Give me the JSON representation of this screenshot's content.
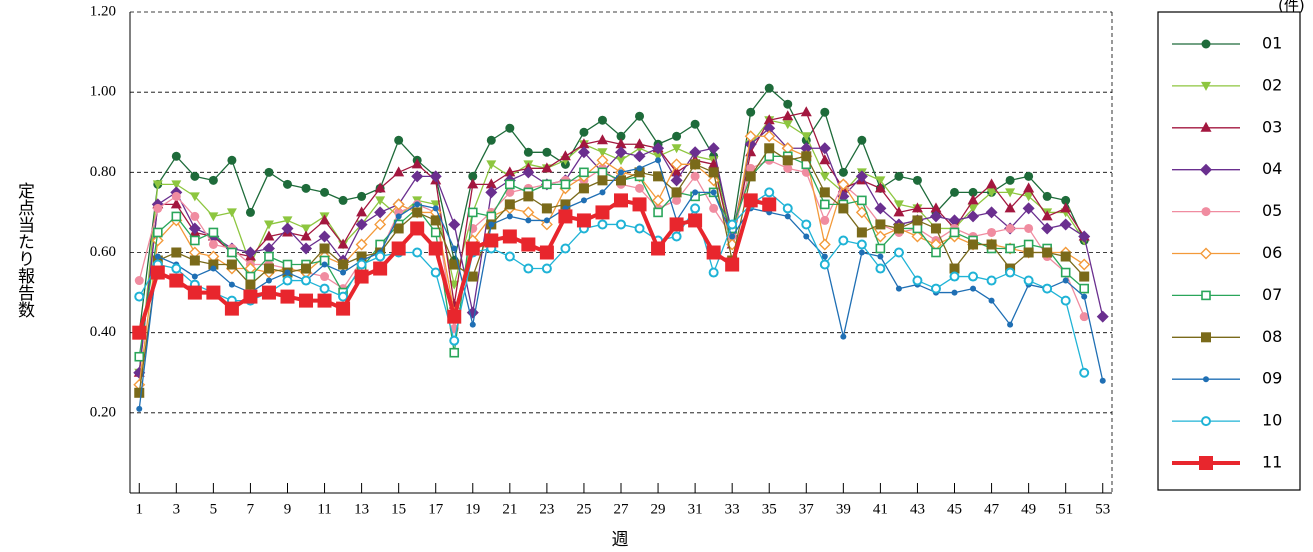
{
  "chart_data": {
    "type": "line",
    "unit_label": "(件)",
    "xlabel": "週",
    "ylabel": "定点当たり報告数",
    "x": [
      1,
      2,
      3,
      4,
      5,
      6,
      7,
      8,
      9,
      10,
      11,
      12,
      13,
      14,
      15,
      16,
      17,
      18,
      19,
      20,
      21,
      22,
      23,
      24,
      25,
      26,
      27,
      28,
      29,
      30,
      31,
      32,
      33,
      34,
      35,
      36,
      37,
      38,
      39,
      40,
      41,
      42,
      43,
      44,
      45,
      46,
      47,
      48,
      49,
      50,
      51,
      52,
      53
    ],
    "xlim": [
      0.5,
      53.5
    ],
    "xticks": [
      1,
      3,
      5,
      7,
      9,
      11,
      13,
      15,
      17,
      19,
      21,
      23,
      25,
      27,
      29,
      31,
      33,
      35,
      37,
      39,
      41,
      43,
      45,
      47,
      49,
      51,
      53
    ],
    "ylim": [
      0,
      1.2
    ],
    "yticks": [
      {
        "value": 0.2,
        "label": "0.20"
      },
      {
        "value": 0.4,
        "label": "0.40"
      },
      {
        "value": 0.6,
        "label": "0.60"
      },
      {
        "value": 0.8,
        "label": "0.80"
      },
      {
        "value": 1.0,
        "label": "1.00"
      },
      {
        "value": 1.2,
        "label": "1.20"
      }
    ],
    "grid": true,
    "legend": "right",
    "series": [
      {
        "name": "01",
        "color": "#1e6b3a",
        "marker": "circle",
        "values": [
          0.4,
          0.77,
          0.84,
          0.79,
          0.78,
          0.83,
          0.7,
          0.8,
          0.77,
          0.76,
          0.75,
          0.73,
          0.74,
          0.76,
          0.88,
          0.83,
          0.79,
          0.58,
          0.79,
          0.88,
          0.91,
          0.85,
          0.85,
          0.82,
          0.9,
          0.93,
          0.89,
          0.94,
          0.87,
          0.89,
          0.92,
          0.84,
          0.65,
          0.95,
          1.01,
          0.97,
          0.88,
          0.95,
          0.8,
          0.88,
          0.76,
          0.79,
          0.78,
          0.7,
          0.75,
          0.75,
          0.75,
          0.78,
          0.79,
          0.74,
          0.73,
          0.63,
          null
        ]
      },
      {
        "name": "02",
        "color": "#8dc63f",
        "marker": "triangle-down",
        "values": [
          0.3,
          0.77,
          0.77,
          0.74,
          0.69,
          0.7,
          0.57,
          0.67,
          0.68,
          0.66,
          0.69,
          0.62,
          0.67,
          0.73,
          0.69,
          0.73,
          0.72,
          0.52,
          0.7,
          0.82,
          0.79,
          0.82,
          0.81,
          0.83,
          0.87,
          0.85,
          0.83,
          0.86,
          0.84,
          0.86,
          0.84,
          0.83,
          0.63,
          0.87,
          0.93,
          0.92,
          0.89,
          0.79,
          0.75,
          0.8,
          0.78,
          0.72,
          0.71,
          0.66,
          0.66,
          0.71,
          0.75,
          0.75,
          0.74,
          0.7,
          0.7,
          0.63,
          null
        ]
      },
      {
        "name": "03",
        "color": "#a3173f",
        "marker": "triangle-up",
        "values": [
          0.3,
          0.72,
          0.72,
          0.65,
          0.64,
          0.6,
          0.59,
          0.64,
          0.65,
          0.64,
          0.68,
          0.62,
          0.7,
          0.76,
          0.8,
          0.82,
          0.78,
          0.47,
          0.77,
          0.77,
          0.8,
          0.81,
          0.81,
          0.84,
          0.87,
          0.88,
          0.87,
          0.87,
          0.86,
          0.8,
          0.83,
          0.82,
          0.62,
          0.85,
          0.93,
          0.94,
          0.95,
          0.83,
          0.76,
          0.78,
          0.76,
          0.7,
          0.71,
          0.71,
          0.66,
          0.73,
          0.77,
          0.71,
          0.76,
          0.69,
          0.71,
          0.64,
          null
        ]
      },
      {
        "name": "04",
        "color": "#6a2f8f",
        "marker": "diamond",
        "values": [
          0.3,
          0.72,
          0.75,
          0.66,
          0.64,
          0.61,
          0.6,
          0.61,
          0.66,
          0.61,
          0.64,
          0.58,
          0.67,
          0.7,
          0.72,
          0.79,
          0.79,
          0.67,
          0.45,
          0.75,
          0.78,
          0.8,
          0.77,
          0.78,
          0.85,
          0.8,
          0.85,
          0.84,
          0.86,
          0.78,
          0.85,
          0.86,
          0.64,
          0.87,
          0.91,
          0.86,
          0.86,
          0.86,
          0.74,
          0.79,
          0.71,
          0.67,
          0.68,
          0.69,
          0.68,
          0.69,
          0.7,
          0.66,
          0.71,
          0.66,
          0.67,
          0.64,
          0.44
        ]
      },
      {
        "name": "05",
        "color": "#f08ca0",
        "marker": "circle",
        "values": [
          0.53,
          0.71,
          0.74,
          0.69,
          0.62,
          0.61,
          0.57,
          0.57,
          0.56,
          0.55,
          0.54,
          0.51,
          0.58,
          0.6,
          0.7,
          0.72,
          0.7,
          0.41,
          0.66,
          0.7,
          0.75,
          0.76,
          0.77,
          0.78,
          0.78,
          0.81,
          0.77,
          0.76,
          0.71,
          0.73,
          0.79,
          0.71,
          0.64,
          0.81,
          0.83,
          0.81,
          0.8,
          0.68,
          0.77,
          0.73,
          0.67,
          0.65,
          0.66,
          0.63,
          0.66,
          0.64,
          0.65,
          0.66,
          0.66,
          0.59,
          0.55,
          0.44,
          null
        ]
      },
      {
        "name": "06",
        "color": "#f39a3a",
        "marker": "diamond-open",
        "values": [
          0.27,
          0.63,
          0.68,
          0.6,
          0.59,
          0.56,
          0.56,
          0.55,
          0.56,
          0.55,
          0.59,
          0.57,
          0.62,
          0.67,
          0.72,
          0.7,
          0.7,
          0.45,
          0.63,
          0.69,
          0.71,
          0.7,
          0.67,
          0.76,
          0.79,
          0.83,
          0.8,
          0.79,
          0.73,
          0.82,
          0.82,
          0.78,
          0.62,
          0.89,
          0.89,
          0.86,
          0.84,
          0.62,
          0.77,
          0.7,
          0.64,
          0.66,
          0.64,
          0.62,
          0.64,
          0.62,
          0.62,
          0.61,
          0.6,
          0.6,
          0.6,
          0.57,
          null
        ]
      },
      {
        "name": "07",
        "color": "#2aa65a",
        "marker": "square-open",
        "values": [
          0.34,
          0.65,
          0.69,
          0.63,
          0.65,
          0.6,
          0.54,
          0.59,
          0.57,
          0.57,
          0.58,
          0.5,
          0.56,
          0.62,
          0.67,
          0.71,
          0.65,
          0.35,
          0.7,
          0.69,
          0.77,
          0.75,
          0.77,
          0.77,
          0.8,
          0.8,
          0.78,
          0.79,
          0.7,
          0.75,
          0.74,
          0.75,
          0.66,
          0.79,
          0.84,
          0.84,
          0.82,
          0.72,
          0.72,
          0.73,
          0.61,
          0.66,
          0.66,
          0.6,
          0.65,
          0.63,
          0.61,
          0.61,
          0.62,
          0.61,
          0.55,
          0.51,
          null
        ]
      },
      {
        "name": "08",
        "color": "#7a6a1a",
        "marker": "square",
        "values": [
          0.25,
          0.58,
          0.6,
          0.58,
          0.57,
          0.57,
          0.52,
          0.56,
          0.55,
          0.56,
          0.61,
          0.57,
          0.59,
          0.6,
          0.66,
          0.7,
          0.68,
          0.57,
          0.54,
          0.67,
          0.72,
          0.74,
          0.71,
          0.72,
          0.76,
          0.78,
          0.78,
          0.8,
          0.79,
          0.75,
          0.82,
          0.8,
          0.58,
          0.79,
          0.86,
          0.83,
          0.84,
          0.75,
          0.71,
          0.65,
          0.67,
          0.66,
          0.68,
          0.66,
          0.56,
          0.62,
          0.62,
          0.56,
          0.6,
          0.6,
          0.59,
          0.54,
          null
        ]
      },
      {
        "name": "09",
        "color": "#1f6fb4",
        "marker": "dot",
        "values": [
          0.21,
          0.59,
          0.57,
          0.54,
          0.56,
          0.52,
          0.5,
          0.53,
          0.55,
          0.53,
          0.57,
          0.55,
          0.58,
          0.6,
          0.69,
          0.72,
          0.71,
          0.61,
          0.42,
          0.67,
          0.69,
          0.68,
          0.68,
          0.71,
          0.73,
          0.75,
          0.8,
          0.81,
          0.83,
          0.68,
          0.75,
          0.75,
          0.64,
          0.71,
          0.7,
          0.69,
          0.64,
          0.59,
          0.39,
          0.6,
          0.59,
          0.51,
          0.52,
          0.5,
          0.5,
          0.51,
          0.48,
          0.42,
          0.52,
          0.51,
          0.53,
          0.49,
          0.28
        ]
      },
      {
        "name": "10",
        "color": "#1fb3d6",
        "marker": "circle-open",
        "values": [
          0.49,
          0.57,
          0.56,
          0.52,
          0.5,
          0.48,
          0.48,
          0.5,
          0.53,
          0.53,
          0.51,
          0.49,
          0.57,
          0.59,
          0.6,
          0.6,
          0.55,
          0.38,
          0.6,
          0.61,
          0.59,
          0.56,
          0.56,
          0.61,
          0.66,
          0.67,
          0.67,
          0.66,
          0.63,
          0.64,
          0.71,
          0.55,
          0.67,
          0.72,
          0.75,
          0.71,
          0.67,
          0.57,
          0.63,
          0.62,
          0.56,
          0.6,
          0.53,
          0.51,
          0.54,
          0.54,
          0.53,
          0.55,
          0.53,
          0.51,
          0.48,
          0.3,
          null
        ]
      },
      {
        "name": "11",
        "color": "#e8262d",
        "marker": "square-big",
        "values": [
          0.4,
          0.55,
          0.53,
          0.5,
          0.5,
          0.46,
          0.49,
          0.5,
          0.49,
          0.48,
          0.48,
          0.46,
          0.54,
          0.56,
          0.61,
          0.66,
          0.61,
          0.44,
          0.61,
          0.63,
          0.64,
          0.62,
          0.6,
          0.69,
          0.68,
          0.7,
          0.73,
          0.72,
          0.61,
          0.67,
          0.68,
          0.6,
          0.57,
          0.73,
          0.72,
          null,
          null,
          null,
          null,
          null,
          null,
          null,
          null,
          null,
          null,
          null,
          null,
          null,
          null,
          null,
          null,
          null,
          null
        ]
      }
    ]
  }
}
